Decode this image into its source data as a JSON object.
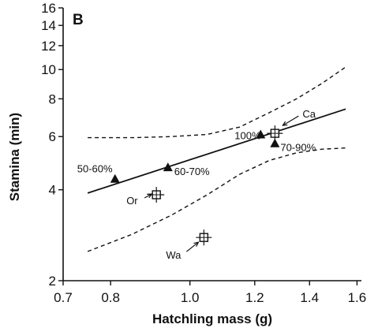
{
  "chart_data": {
    "type": "scatter",
    "panel_label": "B",
    "xlabel": "Hatchling mass (g)",
    "ylabel": "Stamina (min)",
    "x_scale": "log",
    "y_scale": "log",
    "xlim": [
      0.7,
      1.62
    ],
    "ylim": [
      2,
      16
    ],
    "x_ticks": [
      {
        "value": 0.7,
        "label": "0.7"
      },
      {
        "value": 0.8,
        "label": "0.8"
      },
      {
        "value": 1.0,
        "label": "1.0"
      },
      {
        "value": 1.2,
        "label": "1.2"
      },
      {
        "value": 1.4,
        "label": "1.4"
      },
      {
        "value": 1.6,
        "label": "1.6"
      }
    ],
    "y_ticks": [
      {
        "value": 2,
        "label": "2"
      },
      {
        "value": 4,
        "label": "4"
      },
      {
        "value": 6,
        "label": "6"
      },
      {
        "value": 8,
        "label": "8"
      },
      {
        "value": 10,
        "label": "10"
      },
      {
        "value": 12,
        "label": "12"
      },
      {
        "value": 14,
        "label": "14"
      },
      {
        "value": 16,
        "label": "16"
      }
    ],
    "grid": false,
    "series": [
      {
        "marker": "filled-triangle",
        "points": [
          {
            "x": 0.81,
            "y": 4.35,
            "label": "50-60%"
          },
          {
            "x": 0.94,
            "y": 4.75,
            "label": "60-70%"
          },
          {
            "x": 1.22,
            "y": 6.1,
            "label": "100%"
          },
          {
            "x": 1.27,
            "y": 5.7,
            "label": "70-90%"
          }
        ]
      },
      {
        "marker": "open-square-crosshair",
        "points": [
          {
            "x": 0.91,
            "y": 3.85,
            "label": "Or"
          },
          {
            "x": 1.04,
            "y": 2.78,
            "label": "Wa"
          },
          {
            "x": 1.27,
            "y": 6.15,
            "label": "Ca"
          }
        ]
      }
    ],
    "regression_line": [
      {
        "x": 0.75,
        "y": 3.9
      },
      {
        "x": 1.55,
        "y": 7.4
      }
    ],
    "confidence_upper": [
      {
        "x": 0.75,
        "y": 5.95
      },
      {
        "x": 0.85,
        "y": 5.95
      },
      {
        "x": 0.95,
        "y": 6.0
      },
      {
        "x": 1.05,
        "y": 6.1
      },
      {
        "x": 1.15,
        "y": 6.45
      },
      {
        "x": 1.25,
        "y": 7.2
      },
      {
        "x": 1.35,
        "y": 8.0
      },
      {
        "x": 1.45,
        "y": 9.0
      },
      {
        "x": 1.55,
        "y": 10.2
      }
    ],
    "confidence_lower": [
      {
        "x": 0.75,
        "y": 2.5
      },
      {
        "x": 0.85,
        "y": 2.85
      },
      {
        "x": 0.95,
        "y": 3.3
      },
      {
        "x": 1.05,
        "y": 3.85
      },
      {
        "x": 1.15,
        "y": 4.5
      },
      {
        "x": 1.25,
        "y": 5.0
      },
      {
        "x": 1.35,
        "y": 5.3
      },
      {
        "x": 1.45,
        "y": 5.45
      },
      {
        "x": 1.55,
        "y": 5.5
      }
    ]
  }
}
